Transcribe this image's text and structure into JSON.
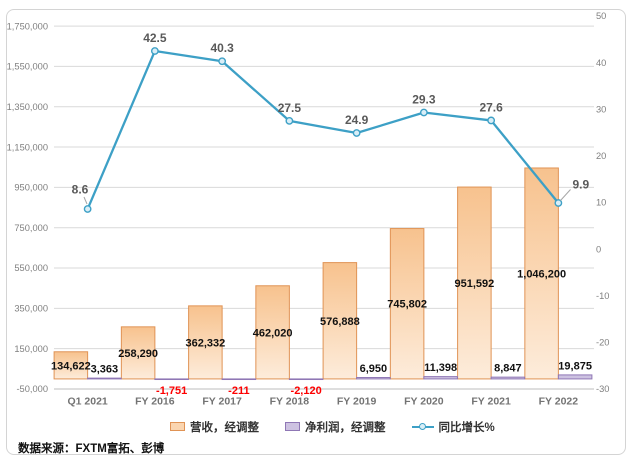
{
  "source_note": "数据来源：FXTM富拓、彭博",
  "legend": [
    {
      "label": "营收，经调整",
      "swatch": "bar"
    },
    {
      "label": "净利润，经调整",
      "swatch": "bar"
    },
    {
      "label": "同比增长%",
      "swatch": "line"
    }
  ],
  "colors": {
    "revenue_fill_top": "#f7c28e",
    "revenue_fill_mid": "#fad5b0",
    "revenue_fill_bottom": "#fdecdb",
    "revenue_border": "#e09355",
    "net_profit_fill": "#cdc2e1",
    "net_profit_border": "#8f77b5",
    "growth_line": "#3da0c6",
    "growth_marker_fill": "#d9eef7",
    "positive_label": "#111111",
    "negative_label": "#fe0000",
    "line_label": "#595959",
    "grid": "#d9d9d9",
    "axis_line": "#bdbdbd",
    "axis_text": "#7f7f7f",
    "category_text": "#737373",
    "leader_line": "#a6a6a6"
  },
  "chart_data": {
    "type": "combo",
    "categories": [
      "Q1 2021",
      "FY 2016",
      "FY 2017",
      "FY 2018",
      "FY 2019",
      "FY 2020",
      "FY 2021",
      "FY 2022"
    ],
    "series": [
      {
        "name": "营收，经调整",
        "chart": "bar",
        "axis": "left",
        "values": [
          134622,
          258290,
          362332,
          462020,
          576888,
          745802,
          951592,
          1046200
        ]
      },
      {
        "name": "净利润，经调整",
        "chart": "bar",
        "axis": "left",
        "values": [
          3363,
          -1751,
          -211,
          -2120,
          6950,
          11398,
          8847,
          19875
        ]
      },
      {
        "name": "同比增长%",
        "chart": "line",
        "axis": "right",
        "values": [
          8.6,
          42.5,
          40.3,
          27.5,
          24.9,
          29.3,
          27.6,
          9.9
        ]
      }
    ],
    "y_left": {
      "min": -50000,
      "max": 1800000,
      "tick_min": -50000,
      "tick_max": 1750000,
      "tick_step": 200000
    },
    "y_right": {
      "min": -30,
      "max": 50,
      "tick_step": 10
    },
    "grid": true,
    "legend_position": "bottom"
  }
}
